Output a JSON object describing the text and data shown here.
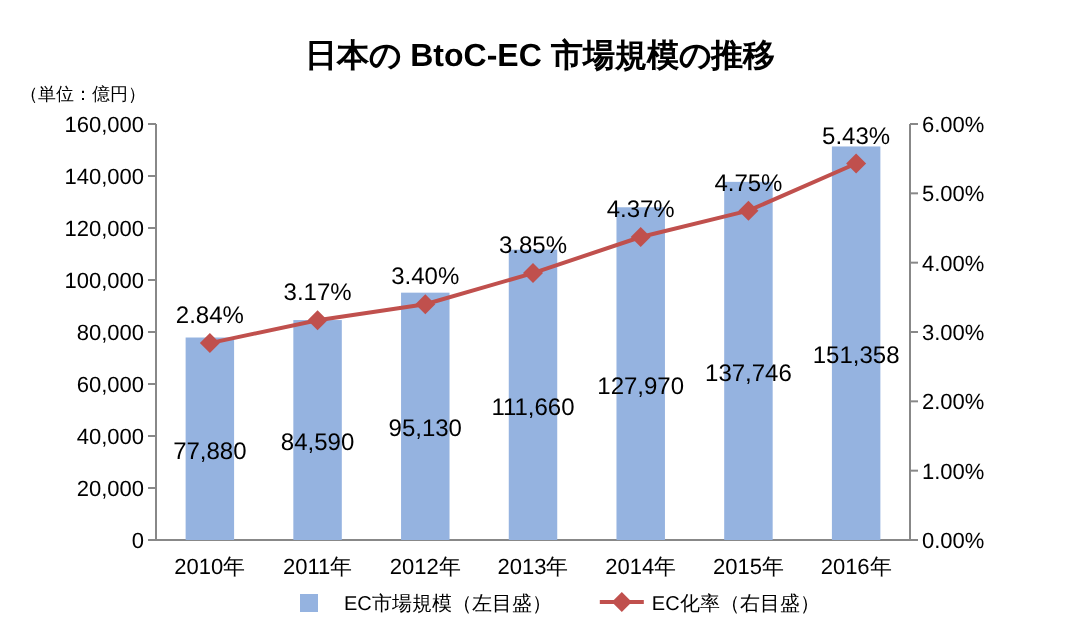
{
  "chart_data": {
    "type": "bar",
    "title": "日本の BtoC-EC 市場規模の推移",
    "ylabel": "（単位：億円）",
    "categories": [
      "2010年",
      "2011年",
      "2012年",
      "2013年",
      "2014年",
      "2015年",
      "2016年"
    ],
    "series": [
      {
        "name": "EC市場規模（左目盛）",
        "color": "#95b3e0",
        "values": [
          77880,
          84590,
          95130,
          111660,
          127970,
          137746,
          151358
        ],
        "value_labels": [
          "77,880",
          "84,590",
          "95,130",
          "111,660",
          "127,970",
          "137,746",
          "151,358"
        ]
      },
      {
        "name": "EC化率（右目盛）",
        "type": "line",
        "axis": "y2",
        "color": "#c0504d",
        "marker": "diamond",
        "values": [
          2.84,
          3.17,
          3.4,
          3.85,
          4.37,
          4.75,
          5.43
        ],
        "value_labels": [
          "2.84%",
          "3.17%",
          "3.40%",
          "3.85%",
          "4.37%",
          "4.75%",
          "5.43%"
        ]
      }
    ],
    "ylim": [
      0,
      160000
    ],
    "yticks": [
      {
        "value": 0,
        "label": "0"
      },
      {
        "value": 20000,
        "label": "20,000"
      },
      {
        "value": 40000,
        "label": "40,000"
      },
      {
        "value": 60000,
        "label": "60,000"
      },
      {
        "value": 80000,
        "label": "80,000"
      },
      {
        "value": 100000,
        "label": "100,000"
      },
      {
        "value": 120000,
        "label": "120,000"
      },
      {
        "value": 140000,
        "label": "140,000"
      },
      {
        "value": 160000,
        "label": "160,000"
      }
    ],
    "y2lim": [
      0,
      6
    ],
    "y2ticks": [
      {
        "value": 0,
        "label": "0.00%"
      },
      {
        "value": 1,
        "label": "1.00%"
      },
      {
        "value": 2,
        "label": "2.00%"
      },
      {
        "value": 3,
        "label": "3.00%"
      },
      {
        "value": 4,
        "label": "4.00%"
      },
      {
        "value": 5,
        "label": "5.00%"
      },
      {
        "value": 6,
        "label": "6.00%"
      }
    ],
    "grid": false,
    "legend": "bottom"
  }
}
